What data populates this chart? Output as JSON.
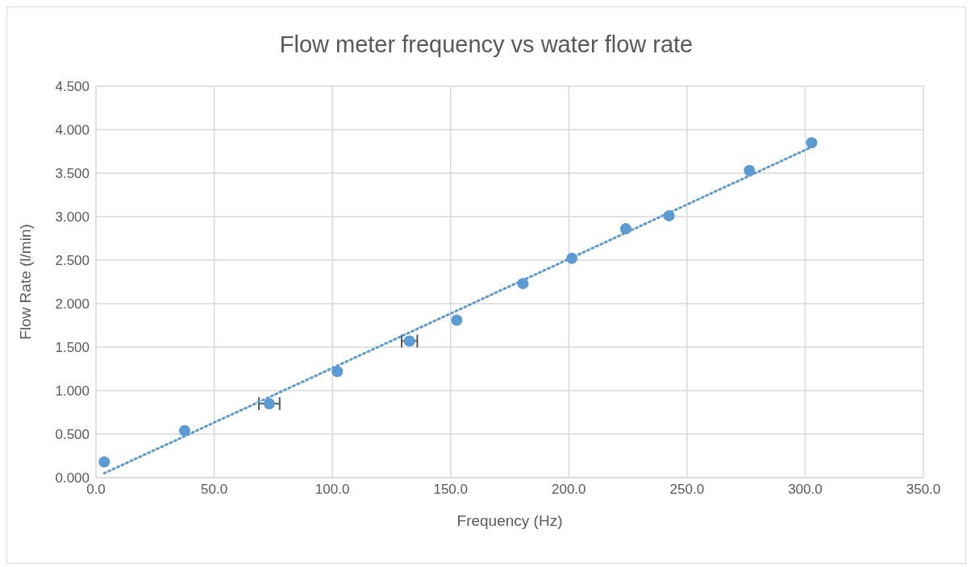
{
  "chart_data": {
    "type": "scatter",
    "title": "Flow meter frequency vs water flow rate",
    "xlabel": "Frequency (Hz)",
    "ylabel": "Flow Rate (l/min)",
    "xlim": [
      0,
      350
    ],
    "xticks": [
      {
        "value": 0,
        "label": "0.0"
      },
      {
        "value": 50,
        "label": "50.0"
      },
      {
        "value": 100,
        "label": "100.0"
      },
      {
        "value": 150,
        "label": "150.0"
      },
      {
        "value": 200,
        "label": "200.0"
      },
      {
        "value": 250,
        "label": "250.0"
      },
      {
        "value": 300,
        "label": "300.0"
      },
      {
        "value": 350,
        "label": "350.0"
      }
    ],
    "ylim": [
      0,
      4.5
    ],
    "yticks": [
      {
        "value": 0,
        "label": "0.000"
      },
      {
        "value": 0.5,
        "label": "0.500"
      },
      {
        "value": 1,
        "label": "1.000"
      },
      {
        "value": 1.5,
        "label": "1.500"
      },
      {
        "value": 2,
        "label": "2.000"
      },
      {
        "value": 2.5,
        "label": "2.500"
      },
      {
        "value": 3,
        "label": "3.000"
      },
      {
        "value": 3.5,
        "label": "3.500"
      },
      {
        "value": 4,
        "label": "4.000"
      },
      {
        "value": 4.5,
        "label": "4.500"
      }
    ],
    "grid": true,
    "legend": false,
    "series": [
      {
        "color": "#5b9bd5",
        "marker": "circle",
        "x": [
          3.5,
          37.5,
          73.3,
          102.1,
          132.6,
          152.6,
          180.6,
          201.3,
          224.1,
          242.4,
          276.4,
          302.7
        ],
        "values": [
          0.18,
          0.54,
          0.85,
          1.22,
          1.57,
          1.81,
          2.23,
          2.52,
          2.86,
          3.01,
          3.53,
          3.85
        ],
        "xerrors": [
          null,
          null,
          4.4,
          null,
          3.3,
          null,
          null,
          null,
          null,
          null,
          null,
          null
        ]
      },
      {
        "type": "line",
        "color": "#5b9bd5",
        "marker": "none",
        "line_style": "dotted",
        "x": [
          3.5,
          302.7
        ],
        "values": [
          0.05,
          3.8
        ]
      }
    ]
  }
}
